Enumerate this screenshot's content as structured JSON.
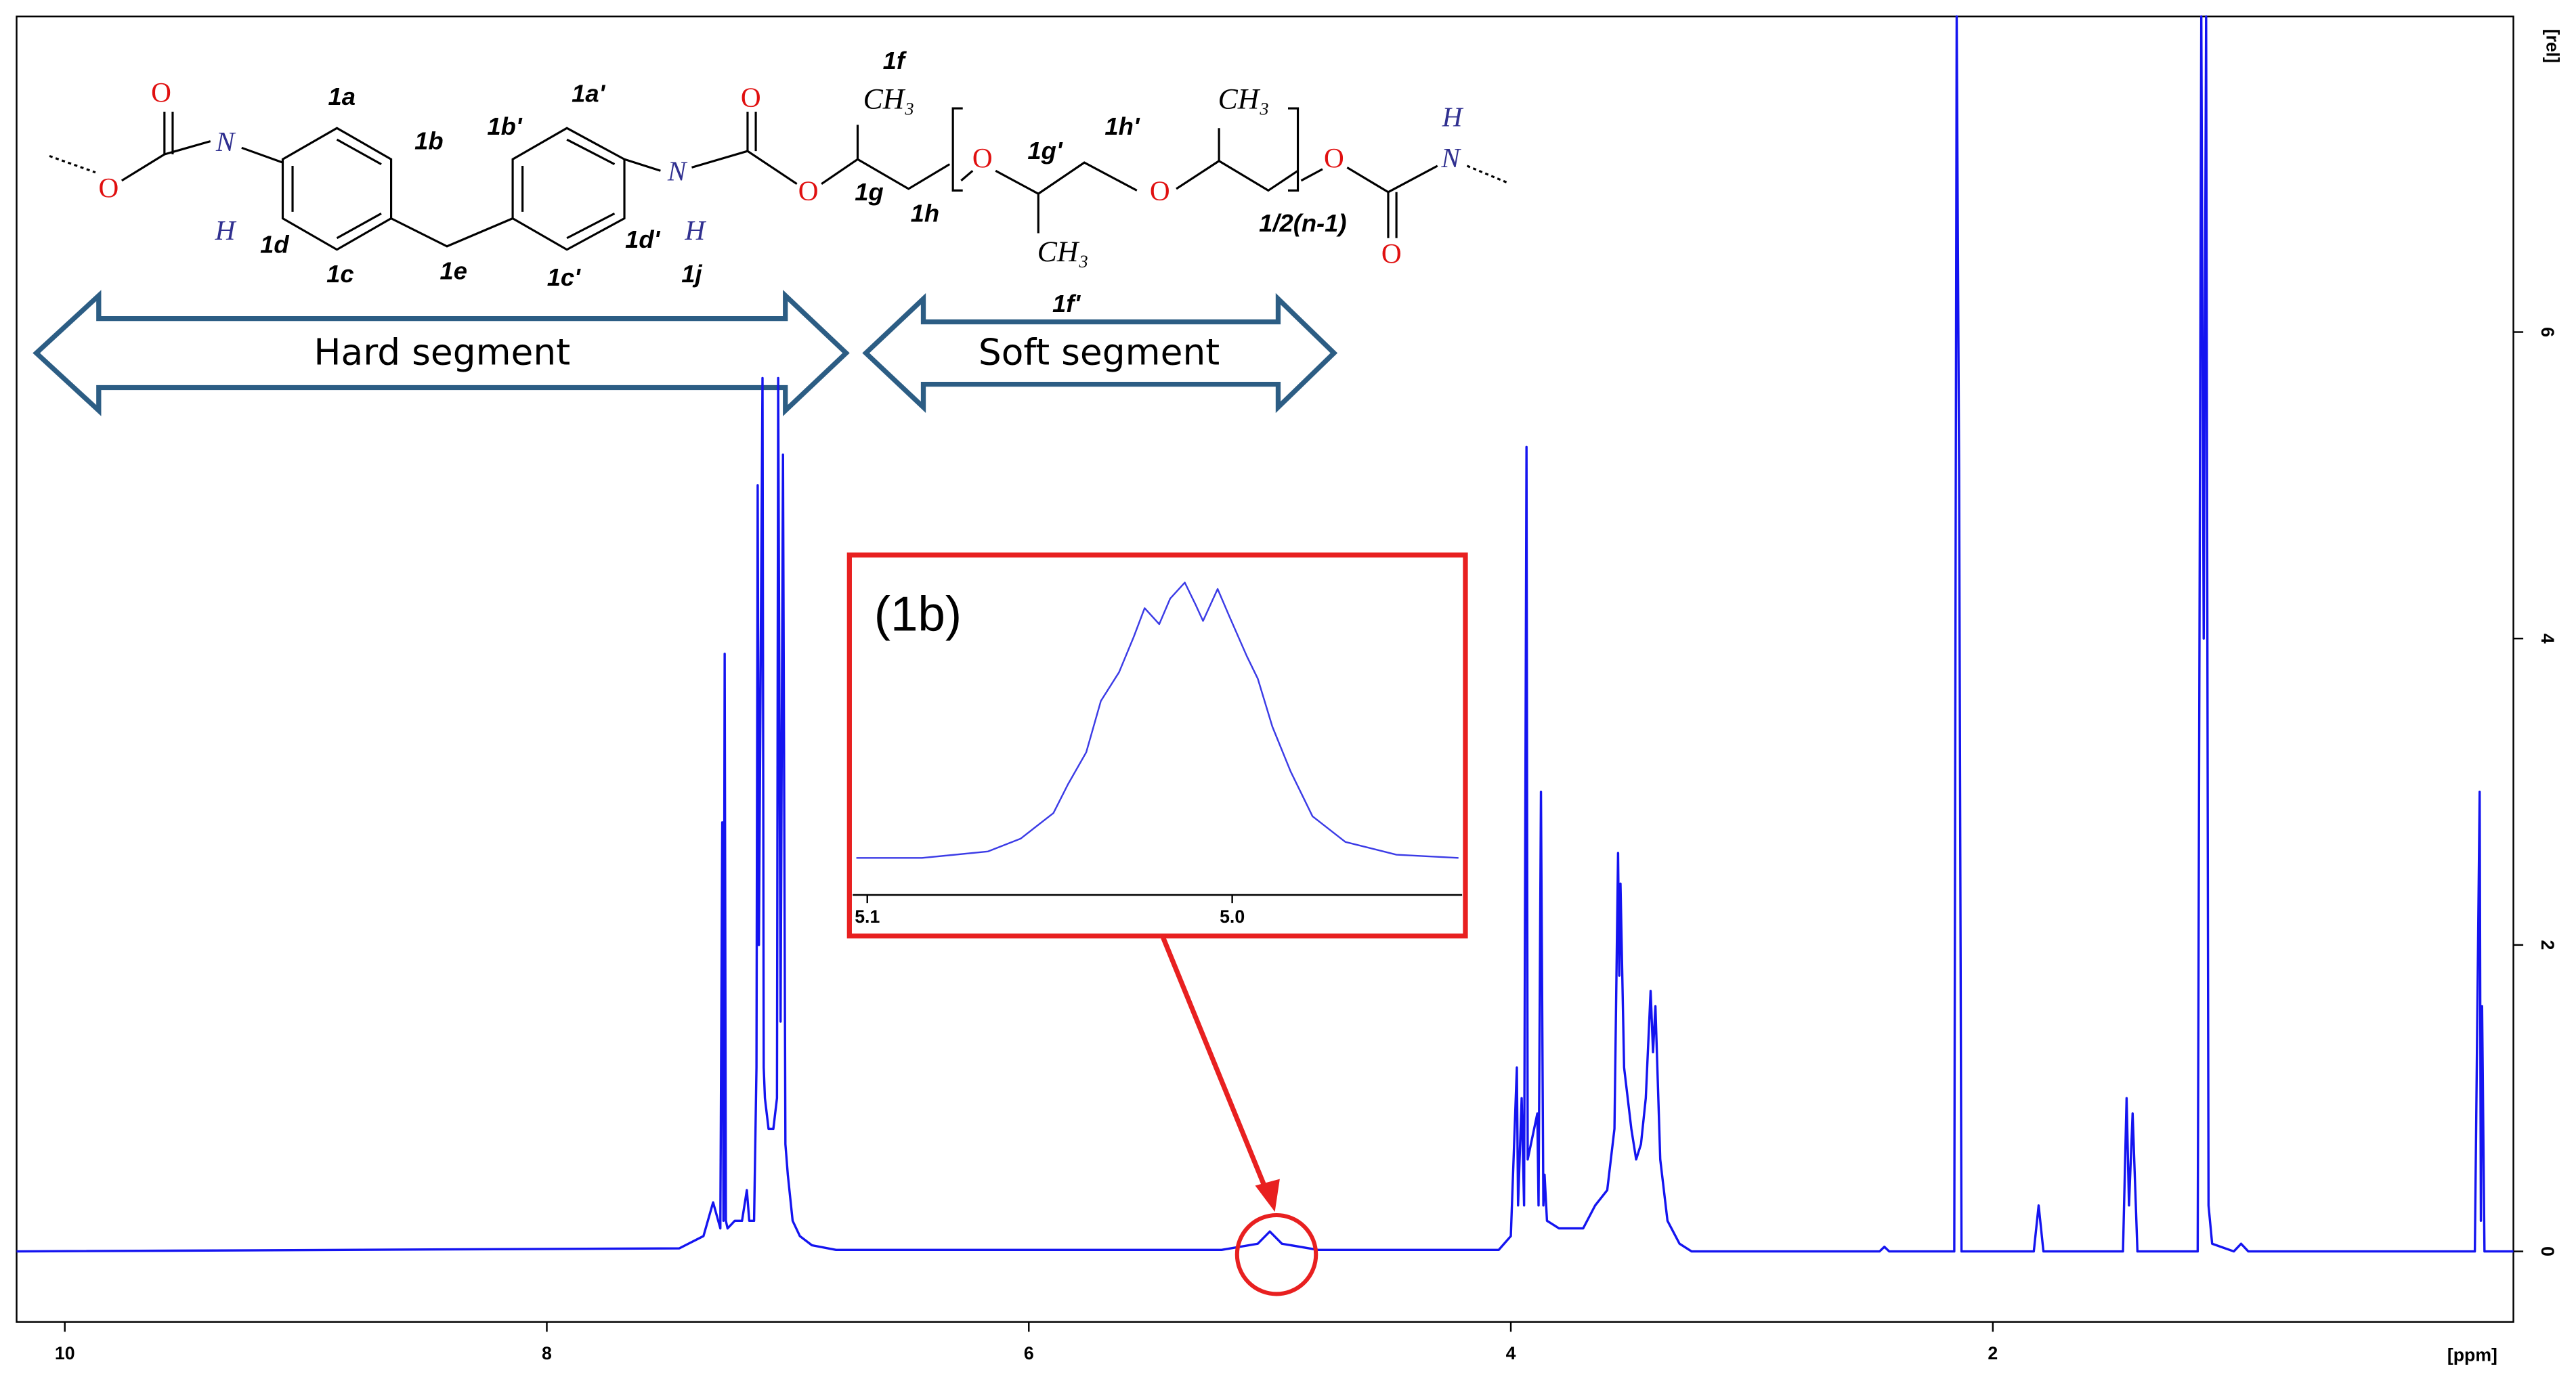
{
  "chart_data": [
    {
      "type": "line",
      "x_label": "[ppm]",
      "y_label": "[rel]",
      "xlim": [
        10.2,
        -0.16
      ],
      "ylim": [
        -0.46,
        8.06
      ],
      "xticks": [
        10,
        8,
        6,
        4,
        2
      ],
      "yticks": [
        0,
        2,
        4,
        6
      ],
      "series": [
        {
          "color": "#1414f0",
          "x": [
            10.2,
            7.45,
            7.35,
            7.31,
            7.28,
            7.272,
            7.267,
            7.262,
            7.257,
            7.25,
            7.22,
            7.19,
            7.17,
            7.16,
            7.14,
            7.13,
            7.125,
            7.12,
            7.105,
            7.1,
            7.095,
            7.08,
            7.06,
            7.045,
            7.04,
            7.03,
            7.02,
            7.01,
            7.0,
            6.98,
            6.95,
            6.9,
            6.8,
            6.6,
            5.2,
            5.05,
            5.0,
            4.95,
            4.8,
            4.05,
            4.0,
            3.975,
            3.97,
            3.955,
            3.945,
            3.935,
            3.93,
            3.89,
            3.885,
            3.875,
            3.865,
            3.86,
            3.85,
            3.8,
            3.75,
            3.7,
            3.65,
            3.6,
            3.57,
            3.555,
            3.55,
            3.545,
            3.53,
            3.5,
            3.48,
            3.46,
            3.44,
            3.42,
            3.41,
            3.4,
            3.38,
            3.35,
            3.3,
            3.25,
            3.15,
            2.47,
            2.45,
            2.43,
            2.16,
            2.15,
            2.14,
            2.13,
            1.83,
            1.81,
            1.79,
            1.46,
            1.445,
            1.435,
            1.42,
            1.4,
            1.15,
            1.135,
            1.125,
            1.115,
            1.105,
            1.09,
            1.0,
            0.97,
            0.94,
            0.0,
            -0.02,
            -0.025,
            -0.03,
            -0.04,
            -0.16
          ],
          "values": [
            0,
            0.02,
            0.1,
            0.32,
            0.15,
            2.8,
            0.2,
            3.9,
            0.2,
            0.15,
            0.2,
            0.2,
            0.4,
            0.2,
            0.2,
            1.2,
            5.0,
            2.0,
            5.7,
            1.2,
            1.0,
            0.8,
            0.8,
            1.0,
            5.7,
            1.5,
            5.2,
            0.7,
            0.5,
            0.2,
            0.1,
            0.04,
            0.01,
            0.01,
            0.01,
            0.05,
            0.13,
            0.05,
            0.01,
            0.01,
            0.1,
            1.2,
            0.3,
            1.0,
            0.3,
            5.25,
            0.6,
            0.9,
            0.3,
            3.0,
            0.3,
            0.5,
            0.2,
            0.15,
            0.15,
            0.15,
            0.3,
            0.4,
            0.8,
            2.6,
            1.8,
            2.4,
            1.2,
            0.8,
            0.6,
            0.7,
            1.0,
            1.7,
            1.3,
            1.6,
            0.6,
            0.2,
            0.05,
            0.0,
            0.0,
            0.0,
            0.03,
            0.0,
            0.0,
            8.06,
            5.1,
            0.0,
            0.0,
            0.3,
            0.0,
            0.0,
            1.0,
            0.3,
            0.9,
            0.0,
            0.0,
            8.06,
            4.0,
            8.06,
            0.3,
            0.05,
            0.0,
            0.05,
            0.0,
            0.0,
            3.0,
            0.2,
            1.6,
            0.0,
            0.0
          ]
        }
      ]
    },
    {
      "type": "line",
      "title": "(1b)",
      "xlim": [
        5.104,
        4.937
      ],
      "ylim": [
        0,
        1
      ],
      "xticks": [
        5.1,
        {
          "value": 5,
          "label": "5.0"
        }
      ],
      "series": [
        {
          "color": "#3b3be6",
          "x": [
            5.103,
            5.085,
            5.067,
            5.058,
            5.049,
            5.045,
            5.04,
            5.036,
            5.031,
            5.027,
            5.024,
            5.02,
            5.017,
            5.013,
            5.01,
            5.008,
            5.004,
            5.001,
            4.996,
            4.993,
            4.989,
            4.984,
            4.978,
            4.969,
            4.955,
            4.938
          ],
          "values": [
            0.09,
            0.09,
            0.11,
            0.15,
            0.23,
            0.32,
            0.42,
            0.58,
            0.67,
            0.78,
            0.87,
            0.82,
            0.9,
            0.95,
            0.88,
            0.83,
            0.93,
            0.85,
            0.72,
            0.65,
            0.5,
            0.36,
            0.22,
            0.14,
            0.1,
            0.09
          ]
        }
      ]
    }
  ],
  "structure": {
    "labels": [
      "O",
      "O",
      "N",
      "H",
      "1a",
      "1b",
      "1d",
      "1c",
      "1e",
      "1b'",
      "1a'",
      "1d'",
      "1c'",
      "1j",
      "N",
      "H",
      "O",
      "O",
      "1f",
      "CH₃",
      "1g",
      "1h",
      "O",
      "1g'",
      "1h'",
      "CH₃",
      "1f'",
      "O",
      "CH₃",
      "1/2(n-1)",
      "O",
      "O",
      "N",
      "H"
    ],
    "hard_segment": "Hard segment",
    "soft_segment": "Soft segment"
  }
}
